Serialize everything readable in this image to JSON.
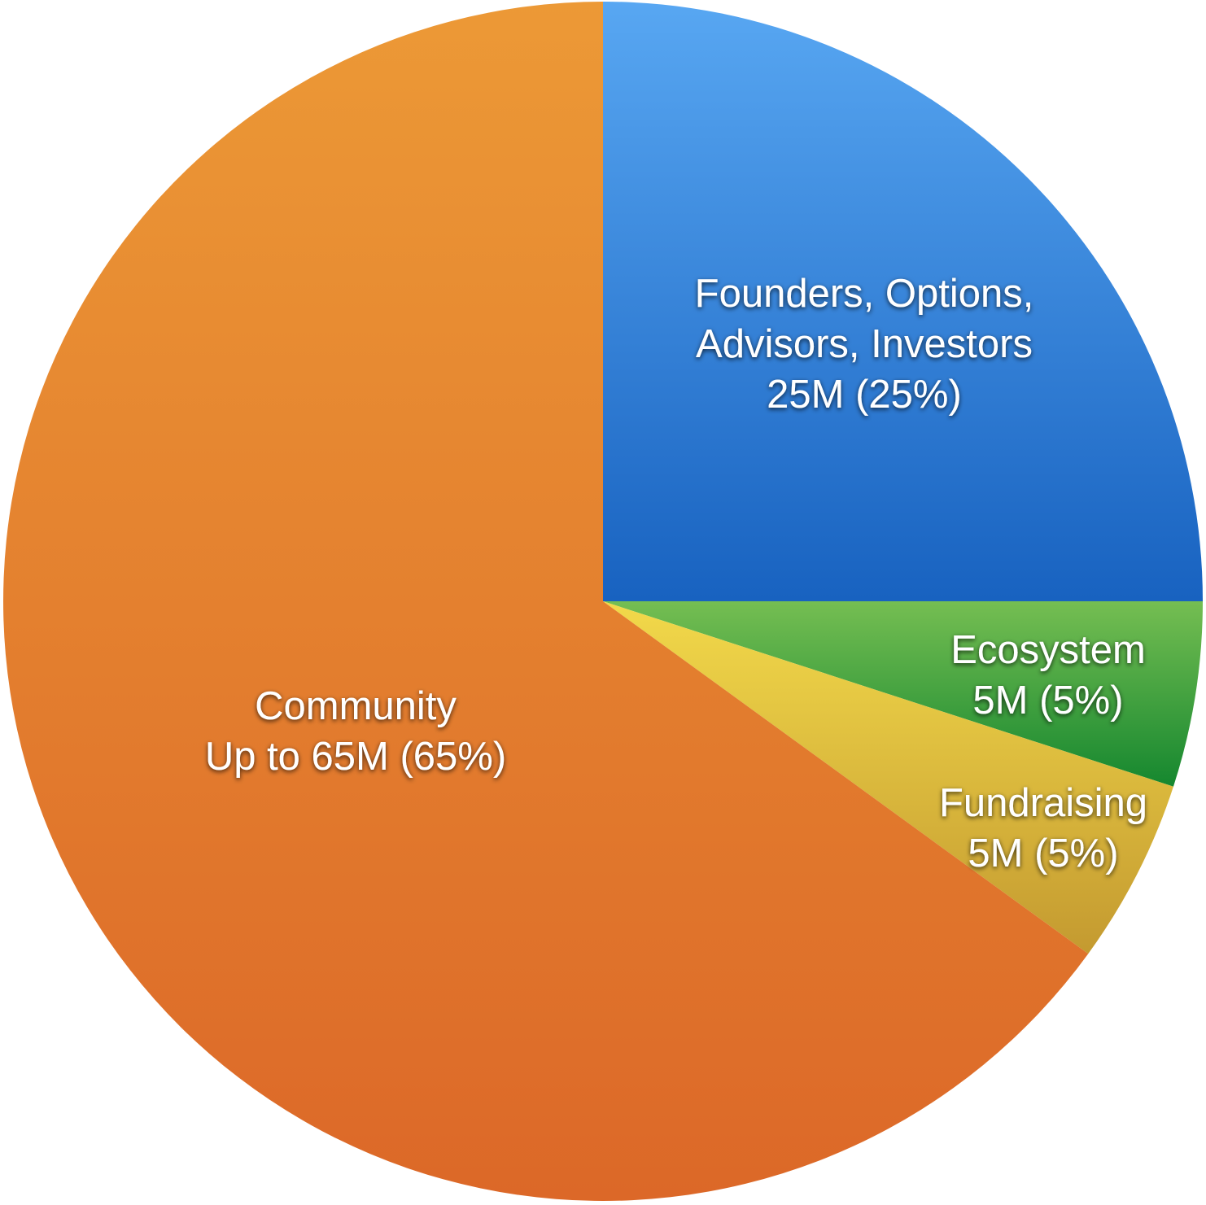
{
  "chart_data": {
    "type": "pie",
    "title": "",
    "start_angle_deg": 0,
    "direction": "clockwise",
    "slices": [
      {
        "label_lines": [
          "Founders, Options,",
          "Advisors, Investors",
          "25M (25%)"
        ],
        "value": 25,
        "percent": 25,
        "color_light": "#58a7f2",
        "color_dark": "#1862c0"
      },
      {
        "label_lines": [
          "Ecosystem",
          "5M (5%)"
        ],
        "value": 5,
        "percent": 5,
        "color_light": "#75be52",
        "color_dark": "#15872f"
      },
      {
        "label_lines": [
          "Fundraising",
          "5M (5%)"
        ],
        "value": 5,
        "percent": 5,
        "color_light": "#f2d94a",
        "color_dark": "#c49a30"
      },
      {
        "label_lines": [
          "Community",
          "Up to 65M (65%)"
        ],
        "value": 65,
        "percent": 65,
        "color_light": "#ec9936",
        "color_dark": "#dc6828"
      }
    ]
  }
}
